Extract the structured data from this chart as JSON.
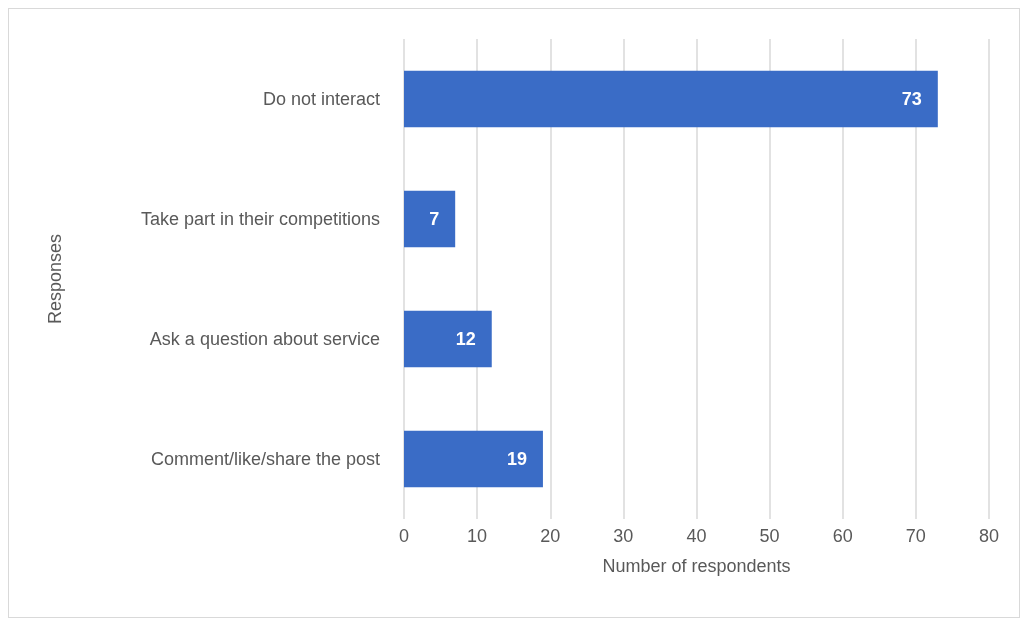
{
  "chart_data": {
    "type": "bar",
    "orientation": "horizontal",
    "categories": [
      "Do not interact",
      "Take part in their competitions",
      "Ask a question about service",
      "Comment/like/share the post"
    ],
    "values": [
      73,
      7,
      12,
      19
    ],
    "color": "#3a6cc6",
    "xlabel": "Number of respondents",
    "ylabel": "Responses",
    "xlim": [
      0,
      80
    ],
    "xticks": [
      0,
      10,
      20,
      30,
      40,
      50,
      60,
      70,
      80
    ],
    "grid": "x",
    "data_labels": true
  }
}
